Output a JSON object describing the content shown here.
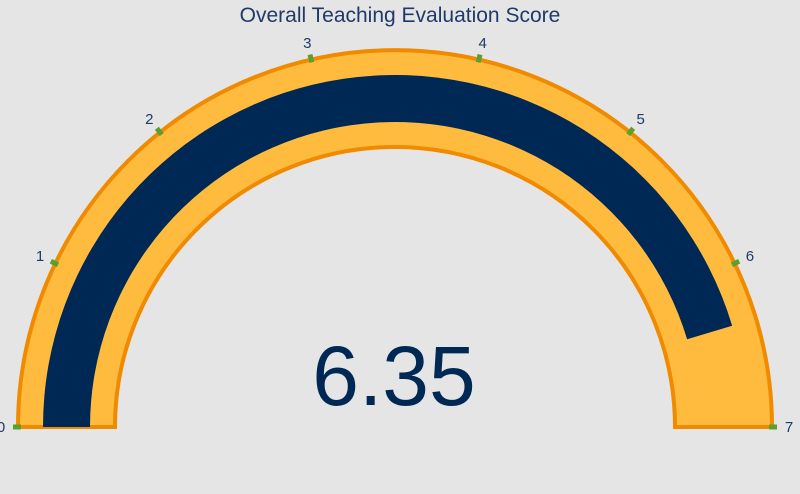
{
  "chart_data": {
    "type": "gauge",
    "title": "Overall Teaching Evaluation Score",
    "value": 6.35,
    "value_label": "6.35",
    "range": [
      0,
      7
    ],
    "ticks": [
      0,
      1,
      2,
      3,
      4,
      5,
      6,
      7
    ],
    "tick_labels": [
      "0",
      "1",
      "2",
      "3",
      "4",
      "5",
      "6",
      "7"
    ],
    "colors": {
      "background": "#e5e5e5",
      "gauge_fill": "#ffbb3d",
      "gauge_border": "#f08a00",
      "value_bar": "#002855",
      "tick": "#5aa02c",
      "text": "#1f3a68"
    }
  }
}
